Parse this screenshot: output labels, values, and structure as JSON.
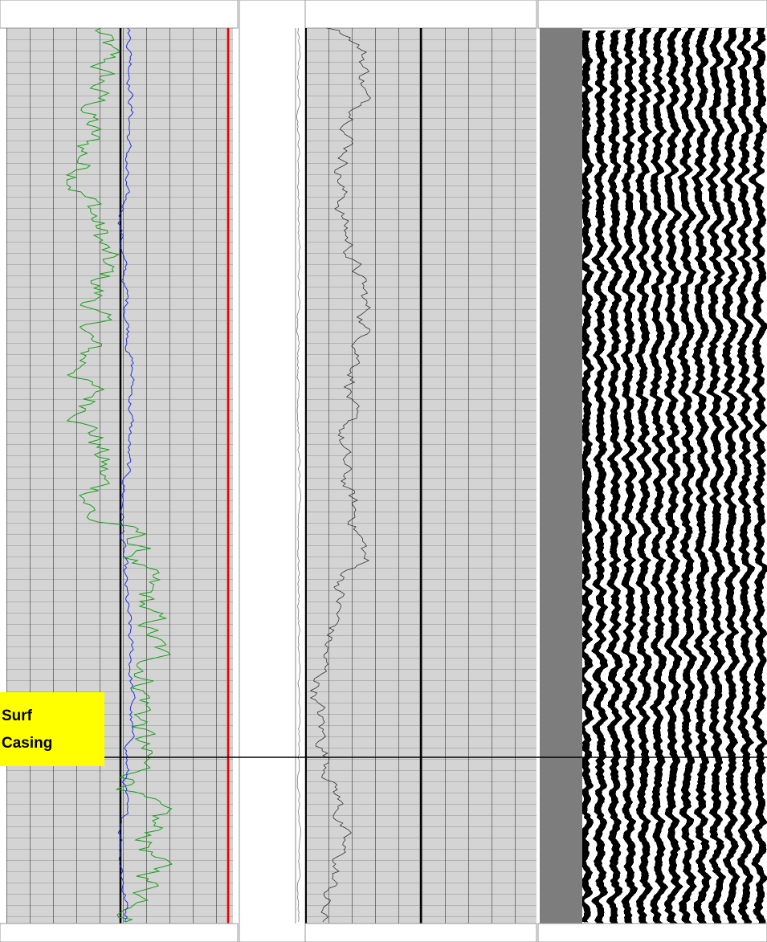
{
  "annotation": {
    "lines": [
      "Surf",
      "Casing"
    ]
  }
}
